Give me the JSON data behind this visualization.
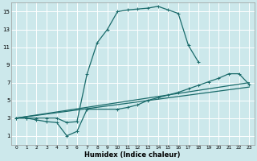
{
  "title": "",
  "xlabel": "Humidex (Indice chaleur)",
  "bg_color": "#cce8eb",
  "grid_color": "#ffffff",
  "line_color": "#1a6b6b",
  "xlim": [
    -0.5,
    23.5
  ],
  "ylim": [
    0,
    16
  ],
  "xticks": [
    0,
    1,
    2,
    3,
    4,
    5,
    6,
    7,
    8,
    9,
    10,
    11,
    12,
    13,
    14,
    15,
    16,
    17,
    18,
    19,
    20,
    21,
    22,
    23
  ],
  "yticks": [
    1,
    3,
    5,
    7,
    9,
    11,
    13,
    15
  ],
  "curve1_x": [
    0,
    1,
    2,
    3,
    4,
    5,
    6,
    7,
    8,
    9,
    10,
    11,
    12,
    13,
    14,
    15,
    16,
    17,
    18
  ],
  "curve1_y": [
    3,
    3,
    3,
    3,
    3,
    2.5,
    2.6,
    8,
    11.5,
    13,
    15,
    15.2,
    15.3,
    15.4,
    15.6,
    15.2,
    14.8,
    11.2,
    9.3
  ],
  "curve2_x": [
    0,
    1,
    2,
    3,
    4,
    5,
    6,
    7,
    10,
    11,
    12,
    13,
    14,
    15,
    16,
    17,
    18,
    19,
    20,
    21,
    22,
    23
  ],
  "curve2_y": [
    3,
    3,
    2.8,
    2.6,
    2.5,
    1,
    1.5,
    4,
    4,
    4.2,
    4.5,
    5.0,
    5.3,
    5.6,
    5.9,
    6.3,
    6.7,
    7.1,
    7.5,
    8,
    8,
    6.8
  ],
  "curve3_x": [
    0,
    23
  ],
  "curve3_y": [
    3,
    7
  ],
  "curve4_x": [
    0,
    23
  ],
  "curve4_y": [
    3,
    6.5
  ],
  "markersize": 3,
  "linewidth": 0.9
}
